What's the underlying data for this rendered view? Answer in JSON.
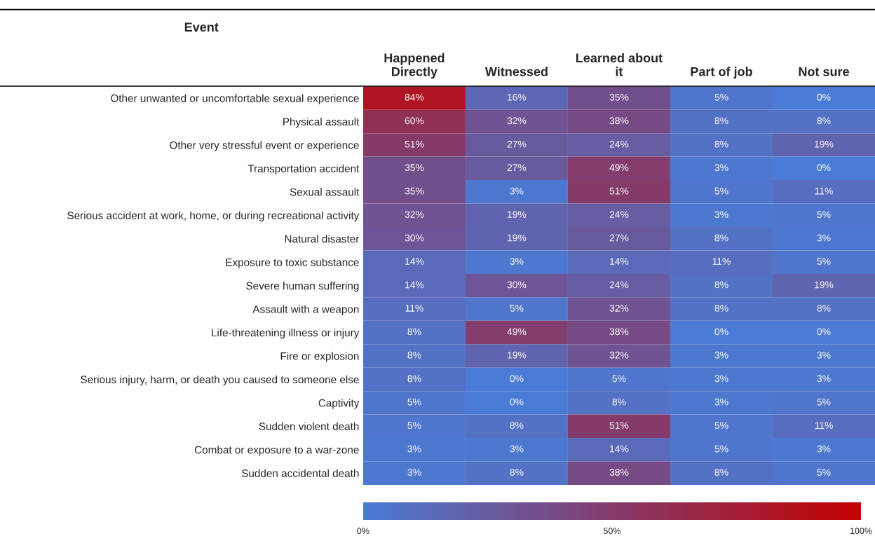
{
  "chart_data": {
    "type": "heatmap",
    "ylabel": "Event",
    "categories": [
      "Happened\nDirectly",
      "Witnessed",
      "Learned about\nit",
      "Part of job",
      "Not sure"
    ],
    "y_categories": [
      "Other unwanted or uncomfortable sexual experience",
      "Physical assault",
      "Other very stressful event or experience",
      "Transportation accident",
      "Sexual assault",
      "Serious accident at work, home, or during recreational activity",
      "Natural disaster",
      "Exposure to toxic substance",
      "Severe human suffering",
      "Assault with a weapon",
      "Life-threatening illness or injury",
      "Fire or explosion",
      "Serious injury, harm, or death you caused to someone else",
      "Captivity",
      "Sudden violent death",
      "Combat or exposure to a war-zone",
      "Sudden accidental death"
    ],
    "cells": [
      [
        84,
        16,
        35,
        5,
        0
      ],
      [
        60,
        32,
        38,
        8,
        8
      ],
      [
        51,
        27,
        24,
        8,
        19
      ],
      [
        35,
        27,
        49,
        3,
        0
      ],
      [
        35,
        3,
        51,
        5,
        11
      ],
      [
        32,
        19,
        24,
        3,
        5
      ],
      [
        30,
        19,
        27,
        8,
        3
      ],
      [
        14,
        3,
        14,
        11,
        5
      ],
      [
        14,
        30,
        24,
        8,
        19
      ],
      [
        11,
        5,
        32,
        8,
        8
      ],
      [
        8,
        49,
        38,
        0,
        0
      ],
      [
        8,
        19,
        32,
        3,
        3
      ],
      [
        8,
        0,
        5,
        3,
        3
      ],
      [
        5,
        0,
        8,
        3,
        5
      ],
      [
        5,
        8,
        51,
        5,
        11
      ],
      [
        3,
        3,
        14,
        5,
        3
      ],
      [
        3,
        8,
        38,
        8,
        5
      ]
    ],
    "cell_labels": [
      [
        "84%",
        "16%",
        "35%",
        "5%",
        "0%"
      ],
      [
        "60%",
        "32%",
        "38%",
        "8%",
        "8%"
      ],
      [
        "51%",
        "27%",
        "24%",
        "8%",
        "19%"
      ],
      [
        "35%",
        "27%",
        "49%",
        "3%",
        "0%"
      ],
      [
        "35%",
        "3%",
        "51%",
        "5%",
        "11%"
      ],
      [
        "32%",
        "19%",
        "24%",
        "3%",
        "5%"
      ],
      [
        "30%",
        "19%",
        "27%",
        "8%",
        "3%"
      ],
      [
        "14%",
        "3%",
        "14%",
        "11%",
        "5%"
      ],
      [
        "14%",
        "30%",
        "24%",
        "8%",
        "19%"
      ],
      [
        "11%",
        "5%",
        "32%",
        "8%",
        "8%"
      ],
      [
        "8%",
        "49%",
        "38%",
        "0%",
        "0%"
      ],
      [
        "8%",
        "19%",
        "32%",
        "3%",
        "3%"
      ],
      [
        "8%",
        "0%",
        "5%",
        "3%",
        "3%"
      ],
      [
        "5%",
        "0%",
        "8%",
        "3%",
        "5%"
      ],
      [
        "5%",
        "8%",
        "51%",
        "5%",
        "11%"
      ],
      [
        "3%",
        "3%",
        "14%",
        "5%",
        "3%"
      ],
      [
        "3%",
        "8%",
        "38%",
        "8%",
        "5%"
      ]
    ],
    "clim": [
      0,
      100
    ],
    "cticks": [
      {
        "value": 0,
        "label": "0%"
      },
      {
        "value": 50,
        "label": "50%"
      },
      {
        "value": 100,
        "label": "100%"
      }
    ]
  }
}
